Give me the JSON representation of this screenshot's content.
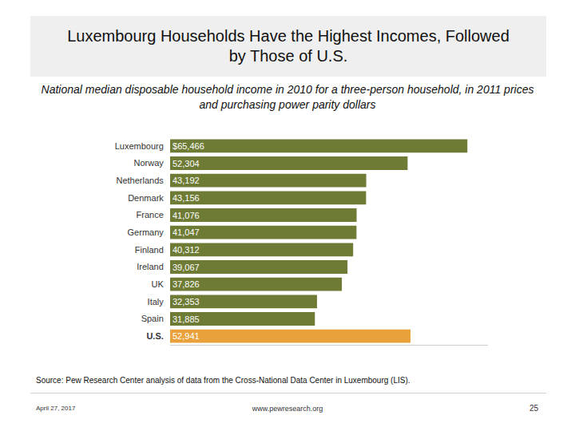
{
  "chart_data": {
    "type": "bar",
    "title": "Luxembourg Households Have the Highest Incomes, Followed by Those of U.S.",
    "subtitle": "National median disposable household income in 2010 for a three-person household, in 2011 prices and purchasing power parity dollars",
    "source": "Source: Pew Research Center analysis of data from the Cross-National Data Center in Luxembourg (LIS).",
    "orientation": "horizontal",
    "categories": [
      "Luxembourg",
      "Norway",
      "Netherlands",
      "Denmark",
      "France",
      "Germany",
      "Finland",
      "Ireland",
      "UK",
      "Italy",
      "Spain",
      "U.S."
    ],
    "values": [
      65466,
      52304,
      43192,
      43156,
      41076,
      41047,
      40312,
      39067,
      37826,
      32353,
      31885,
      52941
    ],
    "value_labels": [
      "$65,466",
      "52,304",
      "43,192",
      "43,156",
      "41,076",
      "41,047",
      "40,312",
      "39,067",
      "37,826",
      "32,353",
      "31,885",
      "52,941"
    ],
    "colors": [
      "#6e7b35",
      "#6e7b35",
      "#6e7b35",
      "#6e7b35",
      "#6e7b35",
      "#6e7b35",
      "#6e7b35",
      "#6e7b35",
      "#6e7b35",
      "#6e7b35",
      "#6e7b35",
      "#e9a23b"
    ],
    "xlim": [
      0,
      70000
    ],
    "data_labels": true,
    "tick_labels": "y",
    "grid": false
  },
  "footer": {
    "date": "April 27, 2017",
    "url": "www.pewresearch.org",
    "page": "25"
  }
}
